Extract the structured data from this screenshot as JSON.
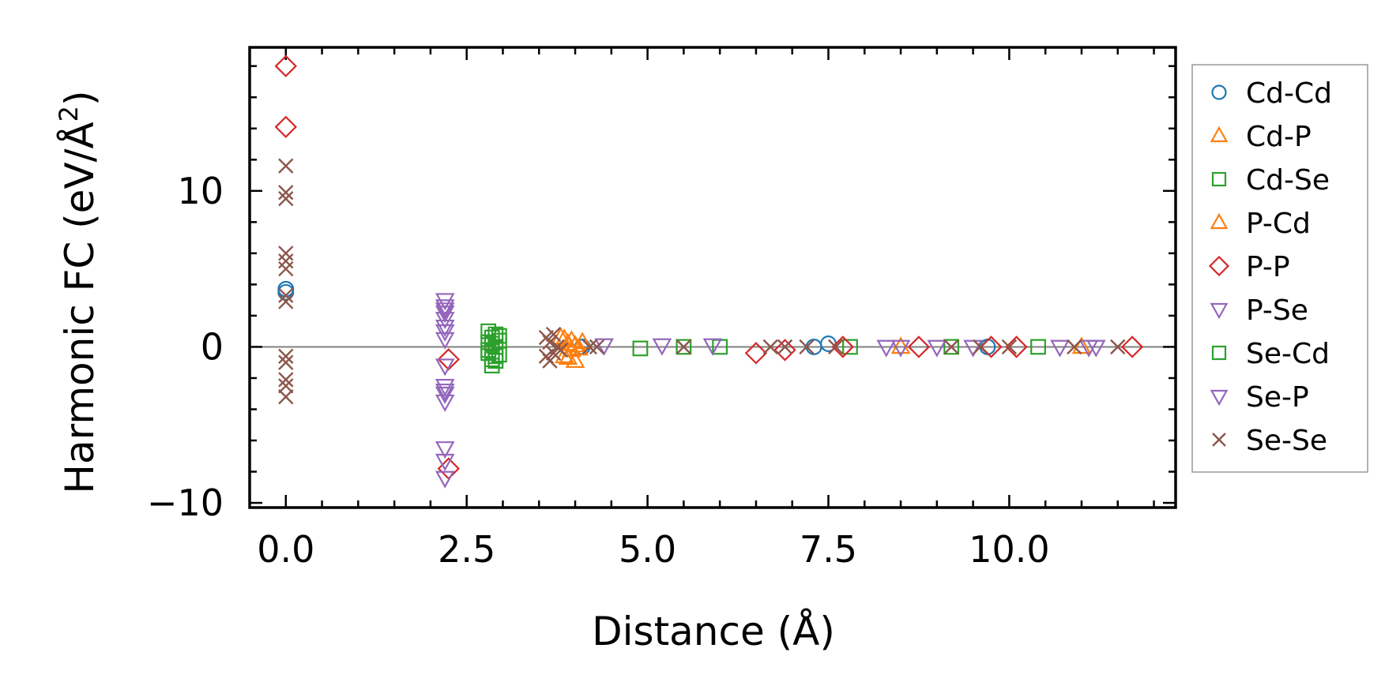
{
  "chart_data": {
    "type": "scatter",
    "title": "",
    "xlabel": "Distance (Å)",
    "ylabel_main": "Harmonic FC (eV/Å",
    "ylabel_sup": "2",
    "ylabel_close": ")",
    "xlim": [
      -0.5,
      12.3
    ],
    "ylim": [
      -10.3,
      19.2
    ],
    "xticks": [
      0.0,
      2.5,
      5.0,
      7.5,
      10.0
    ],
    "xtick_labels": [
      "0.0",
      "2.5",
      "5.0",
      "7.5",
      "10.0"
    ],
    "yticks": [
      -10,
      0,
      10
    ],
    "ytick_labels": [
      "−10",
      "0",
      "10"
    ],
    "zero_line": true,
    "legend_position": "outside-right",
    "series": [
      {
        "name": "Cd-Cd",
        "marker": "circle",
        "color": "#1f77b4",
        "x": [
          0,
          0,
          4.1,
          7.3,
          7.5,
          9.7
        ],
        "y": [
          3.7,
          3.5,
          0.0,
          0.0,
          0.2,
          0.0
        ]
      },
      {
        "name": "Cd-P",
        "marker": "triangle-up",
        "color": "#ff7f0e",
        "x": [
          3.8,
          3.85,
          3.9,
          3.95,
          4.0,
          4.05,
          4.1,
          8.5,
          11.0
        ],
        "y": [
          0.6,
          -0.6,
          0.2,
          -0.2,
          0.1,
          -0.1,
          0.3,
          0.0,
          0.0
        ]
      },
      {
        "name": "Cd-Se",
        "marker": "square",
        "color": "#2ca02c",
        "x": [
          2.8,
          2.8,
          2.8,
          2.85,
          2.85,
          2.85,
          2.9,
          2.9,
          2.9,
          2.95,
          2.95,
          4.9,
          5.5,
          6.0,
          7.8,
          9.2,
          10.4
        ],
        "y": [
          1.0,
          0.3,
          -0.4,
          0.6,
          -0.8,
          -1.2,
          0.8,
          0.0,
          -0.9,
          0.4,
          -0.5,
          -0.1,
          0.0,
          0.0,
          0.0,
          0.0,
          0.0
        ]
      },
      {
        "name": "P-Cd",
        "marker": "triangle-up",
        "color": "#ff7f0e",
        "x": [
          3.85,
          3.9,
          3.95,
          4.0
        ],
        "y": [
          0.5,
          -0.7,
          0.4,
          -0.9
        ]
      },
      {
        "name": "P-P",
        "marker": "diamond",
        "color": "#d62728",
        "x": [
          0,
          0,
          2.25,
          2.25,
          6.5,
          6.9,
          7.7,
          8.75,
          9.75,
          10.1,
          11.7
        ],
        "y": [
          18.0,
          14.1,
          -0.8,
          -7.8,
          -0.4,
          -0.2,
          0.0,
          0.0,
          0.0,
          0.0,
          0.0
        ]
      },
      {
        "name": "P-Se",
        "marker": "triangle-down",
        "color": "#9467bd",
        "x": [
          2.2,
          2.2,
          2.2,
          2.2,
          2.2,
          2.2,
          2.2,
          2.2,
          2.2,
          2.2,
          2.2,
          2.2
        ],
        "y": [
          3.0,
          2.6,
          2.2,
          1.8,
          1.3,
          0.5,
          -1.2,
          -2.5,
          -3.0,
          -3.5,
          -6.5,
          -8.4
        ]
      },
      {
        "name": "Se-Cd",
        "marker": "square",
        "color": "#2ca02c",
        "x": [
          2.8,
          2.85,
          2.9,
          2.95
        ],
        "y": [
          -0.2,
          0.2,
          -0.6,
          0.7
        ]
      },
      {
        "name": "Se-P",
        "marker": "triangle-down",
        "color": "#9467bd",
        "x": [
          2.2,
          2.2,
          2.2,
          2.2,
          4.4,
          5.2,
          5.9,
          8.3,
          8.5,
          9.0,
          9.5,
          10.7,
          11.1,
          11.2
        ],
        "y": [
          2.4,
          1.0,
          -2.8,
          -7.3,
          0.1,
          0.1,
          0.1,
          0.0,
          0.0,
          0.0,
          0.0,
          0.0,
          0.0,
          0.0
        ]
      },
      {
        "name": "Se-Se",
        "marker": "x",
        "color": "#8c564b",
        "x": [
          0,
          0,
          0,
          0,
          0,
          0,
          0,
          0,
          0,
          0,
          0,
          0,
          0,
          3.6,
          3.6,
          3.65,
          3.65,
          3.7,
          3.7,
          3.75,
          3.8,
          4.2,
          4.3,
          5.5,
          6.7,
          6.9,
          7.2,
          7.6,
          9.2,
          9.6,
          10.0,
          10.9,
          11.5
        ],
        "y": [
          11.6,
          9.9,
          9.5,
          6.0,
          5.5,
          5.0,
          3.3,
          2.9,
          -0.6,
          -1.0,
          -2.1,
          -2.5,
          -3.2,
          0.6,
          -0.6,
          0.3,
          -0.9,
          0.8,
          -0.4,
          0.0,
          -0.2,
          0.0,
          0.0,
          0.0,
          0.0,
          0.0,
          0.0,
          0.0,
          0.0,
          0.0,
          0.0,
          0.0,
          0.0
        ]
      }
    ]
  }
}
